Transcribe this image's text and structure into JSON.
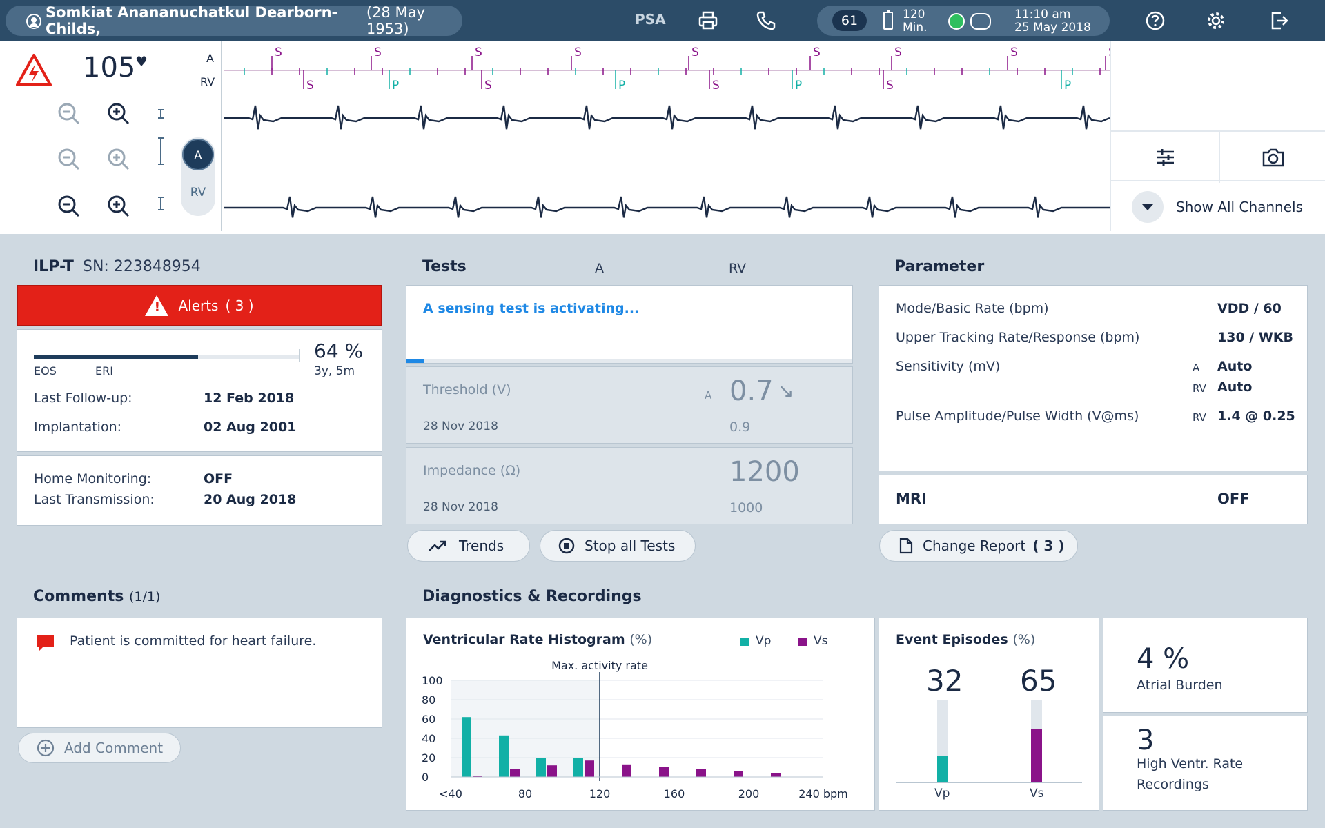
{
  "header": {
    "patient_name": "Somkiat Anananuchatkul Dearborn-Childs,",
    "patient_dob": "(28 May 1953)",
    "psa": "PSA",
    "status_number": "61",
    "battery_value": "120",
    "battery_unit": "Min.",
    "time": "11:10 am",
    "date": "25 May 2018"
  },
  "ecg": {
    "heart_rate": "105",
    "channel_a": "A",
    "channel_rv": "RV",
    "toggle_active": "A",
    "toggle_inactive": "RV",
    "i_label": "I",
    "marker_row1": [
      "S",
      "S",
      "S",
      "S",
      "S",
      "S",
      "S",
      "S",
      "S"
    ],
    "marker_row2": [
      "S",
      "P",
      "S",
      "P",
      "S",
      "P",
      "S",
      "P"
    ],
    "show_all_channels": "Show All Channels"
  },
  "device": {
    "model": "ILP-T",
    "sn_label": "SN: 223848954",
    "alerts_label": "Alerts",
    "alerts_count": "( 3 )",
    "battery_percent": "64 %",
    "battery_remaining": "3y, 5m",
    "battery_fill": 0.62,
    "eos": "EOS",
    "eri": "ERI",
    "last_followup_label": "Last Follow-up:",
    "last_followup_value": "12 Feb 2018",
    "implantation_label": "Implantation:",
    "implantation_value": "02 Aug 2001",
    "home_monitoring_label": "Home Monitoring:",
    "home_monitoring_value": "OFF",
    "last_transmission_label": "Last Transmission:",
    "last_transmission_value": "20 Aug 2018"
  },
  "tests": {
    "title": "Tests",
    "col_a": "A",
    "col_rv": "RV",
    "activating": "A sensing test is activating...",
    "progress": 0.04,
    "threshold_label": "Threshold (V)",
    "threshold_channel": "A",
    "threshold_value": "0.7",
    "threshold_arrow": "↘",
    "threshold_date": "28 Nov 2018",
    "threshold_prev": "0.9",
    "impedance_label": "Impedance (Ω)",
    "impedance_value": "1200",
    "impedance_date": "28 Nov 2018",
    "impedance_prev": "1000",
    "trends_button": "Trends",
    "stop_button": "Stop all Tests"
  },
  "parameter": {
    "title": "Parameter",
    "rows": [
      {
        "label": "Mode/Basic Rate (bpm)",
        "channel": "",
        "value": "VDD / 60"
      },
      {
        "label": "Upper Tracking Rate/Response (bpm)",
        "channel": "",
        "value": "130 / WKB"
      },
      {
        "label": "Sensitivity (mV)",
        "channel": "A",
        "value": "Auto"
      },
      {
        "label": "",
        "channel": "RV",
        "value": "Auto"
      },
      {
        "label": "Pulse Amplitude/Pulse Width (V@ms)",
        "channel": "RV",
        "value": "1.4 @ 0.25"
      }
    ],
    "mri_label": "MRI",
    "mri_value": "OFF",
    "change_report": "Change Report",
    "change_report_count": "( 3 )"
  },
  "comments": {
    "title": "Comments",
    "count": "(1/1)",
    "text": "Patient is committed for heart failure.",
    "add_comment": "Add Comment"
  },
  "diagnostics": {
    "title": "Diagnostics & Recordings",
    "histogram_title": "Ventricular Rate Histogram",
    "histogram_unit": "(%)",
    "legend_vp": "Vp",
    "legend_vs": "Vs",
    "max_activity": "Max. activity rate",
    "events_title": "Event Episodes",
    "events_unit": "(%)",
    "events_vp": "32",
    "events_vs": "65",
    "events_vp_label": "Vp",
    "events_vs_label": "Vs",
    "atrial_burden_value": "4 %",
    "atrial_burden_label": "Atrial Burden",
    "hvr_value": "3",
    "hvr_label_1": "High Ventr. Rate",
    "hvr_label_2": "Recordings"
  },
  "colors": {
    "vp": "#12b0a6",
    "vs": "#8a1389",
    "alert": "#e32118",
    "accent": "#1e88e5"
  },
  "chart_data": {
    "type": "bar",
    "title": "Ventricular Rate Histogram (%)",
    "categories": [
      "<40",
      "60",
      "80",
      "100",
      "120",
      "140",
      "160",
      "180",
      "200"
    ],
    "x_tick_labels": [
      "<40",
      "80",
      "120",
      "160",
      "200",
      "240 bpm"
    ],
    "series": [
      {
        "name": "Vp",
        "values": [
          62,
          43,
          20,
          20,
          0,
          0,
          0,
          0,
          0
        ]
      },
      {
        "name": "Vs",
        "values": [
          1,
          8,
          12,
          17,
          13,
          10,
          8,
          6,
          4
        ]
      }
    ],
    "y_ticks": [
      "100",
      "80",
      "60",
      "40",
      "20",
      "0"
    ],
    "ylim": [
      0,
      100
    ],
    "max_activity_rate_x": 120,
    "legend": "top-right"
  }
}
